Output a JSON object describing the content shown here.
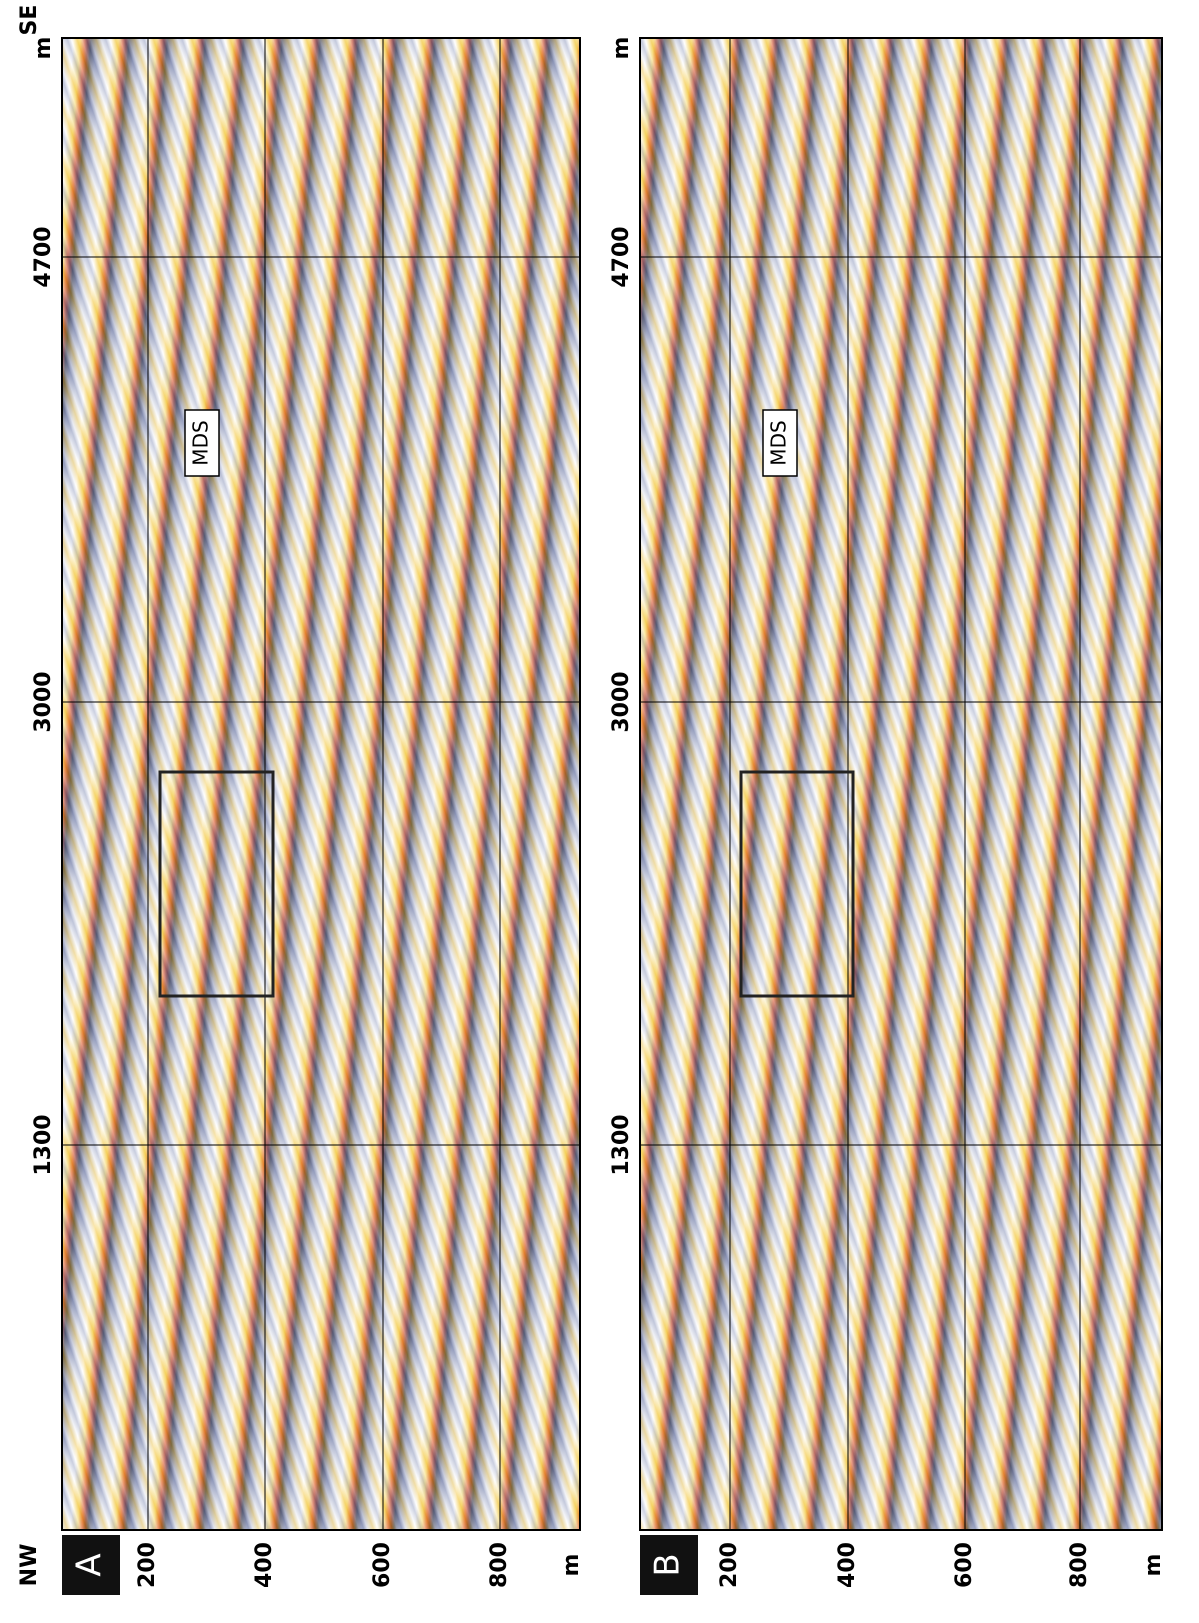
{
  "orientation": {
    "left": "NW",
    "right": "SE"
  },
  "panels": [
    {
      "label": "A",
      "depth_ticks": [
        "200",
        "400",
        "600",
        "800"
      ],
      "depth_unit": "m",
      "distance_ticks": [
        "1300",
        "3000",
        "4700"
      ],
      "distance_unit": "m",
      "annotation": "MDS"
    },
    {
      "label": "B",
      "depth_ticks": [
        "200",
        "400",
        "600",
        "800"
      ],
      "depth_unit": "m",
      "distance_ticks": [
        "1300",
        "3000",
        "4700"
      ],
      "distance_unit": "m",
      "annotation": "MDS"
    }
  ]
}
